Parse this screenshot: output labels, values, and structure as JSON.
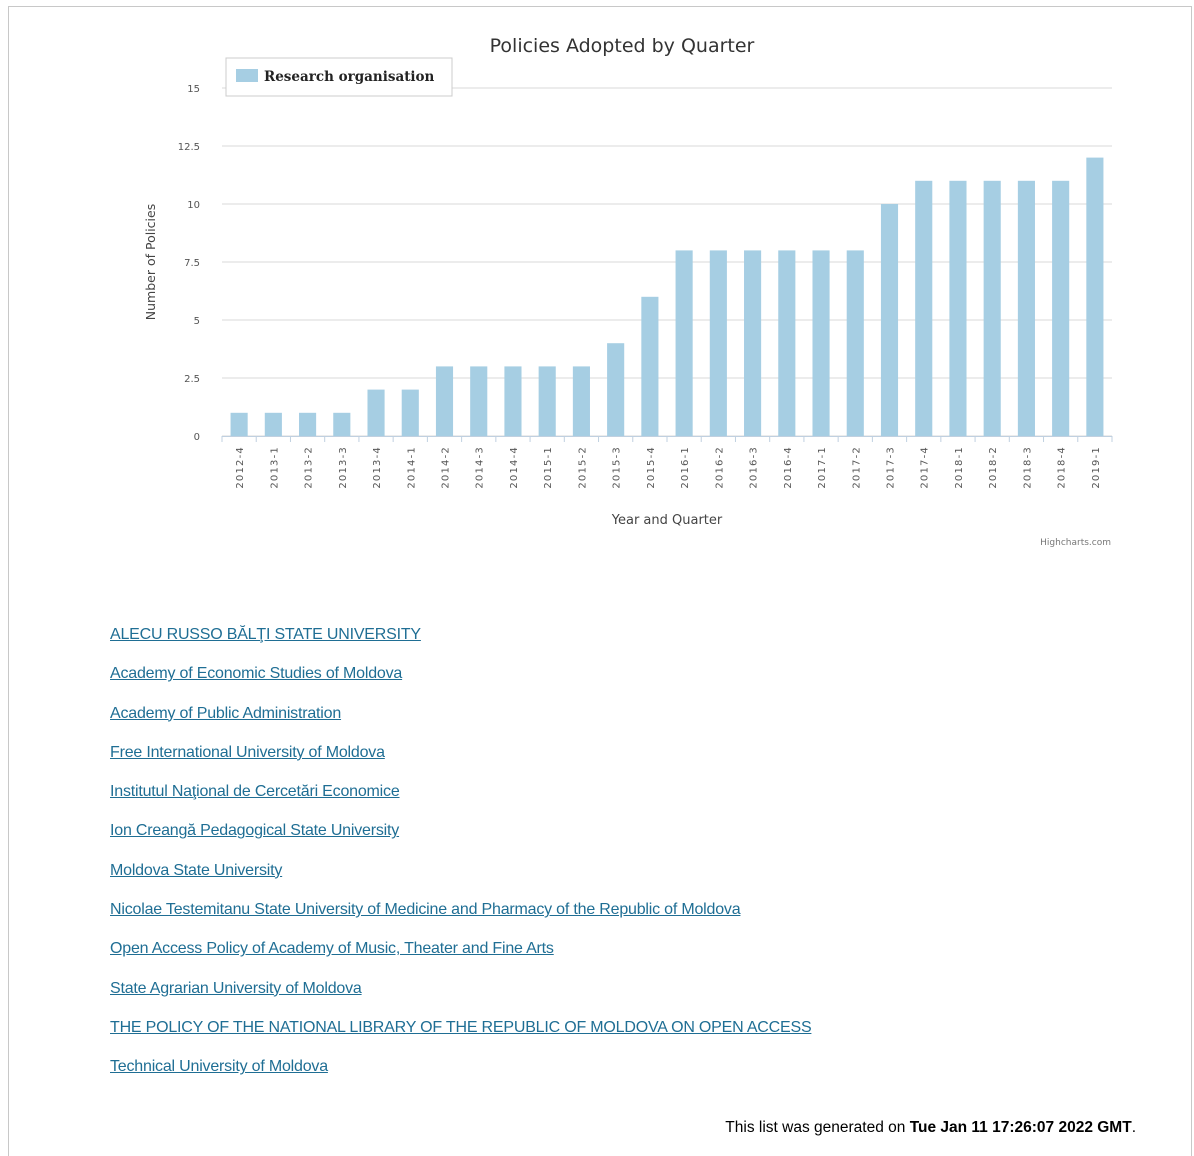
{
  "chart_data": {
    "type": "bar",
    "title": "Policies Adopted by Quarter",
    "xlabel": "Year and Quarter",
    "ylabel": "Number of Policies",
    "credits": "Highcharts.com",
    "ylim": [
      0,
      15
    ],
    "yticks": [
      "0",
      "2.5",
      "5",
      "7.5",
      "10",
      "12.5",
      "15"
    ],
    "grid": true,
    "legend_position": "top-left",
    "categories": [
      "2012-4",
      "2013-1",
      "2013-2",
      "2013-3",
      "2013-4",
      "2014-1",
      "2014-2",
      "2014-3",
      "2014-4",
      "2015-1",
      "2015-2",
      "2015-3",
      "2015-4",
      "2016-1",
      "2016-2",
      "2016-3",
      "2016-4",
      "2017-1",
      "2017-2",
      "2017-3",
      "2017-4",
      "2018-1",
      "2018-2",
      "2018-3",
      "2018-4",
      "2019-1"
    ],
    "series": [
      {
        "name": "Research organisation",
        "color": "#a6cee3",
        "values": [
          1,
          1,
          1,
          1,
          2,
          2,
          3,
          3,
          3,
          3,
          3,
          4,
          6,
          8,
          8,
          8,
          8,
          8,
          8,
          10,
          11,
          11,
          11,
          11,
          11,
          12
        ]
      }
    ]
  },
  "links": [
    "ALECU RUSSO BĂLŢI STATE UNIVERSITY",
    "Academy of Economic Studies of Moldova",
    "Academy of Public Administration",
    "Free International University of Moldova",
    "Institutul Naţional de Cercetări Economice",
    "Ion Creangă Pedagogical State University",
    "Moldova State University",
    "Nicolae Testemitanu State University of Medicine and Pharmacy of the Republic of Moldova",
    "Open Access Policy of Academy of Music, Theater and Fine Arts",
    "State Agrarian University of Moldova",
    "THE POLICY OF THE NATIONAL LIBRARY OF THE REPUBLIC OF MOLDOVA ON OPEN ACCESS",
    "Technical University of Moldova"
  ],
  "footer": {
    "prefix": "This list was generated on",
    "date": "Tue Jan 11 17:26:07 2022 GMT",
    "suffix": "."
  },
  "colors": {
    "link": "#1f6e94",
    "grid": "#d8d8d8",
    "bar": "#a6cee3"
  }
}
